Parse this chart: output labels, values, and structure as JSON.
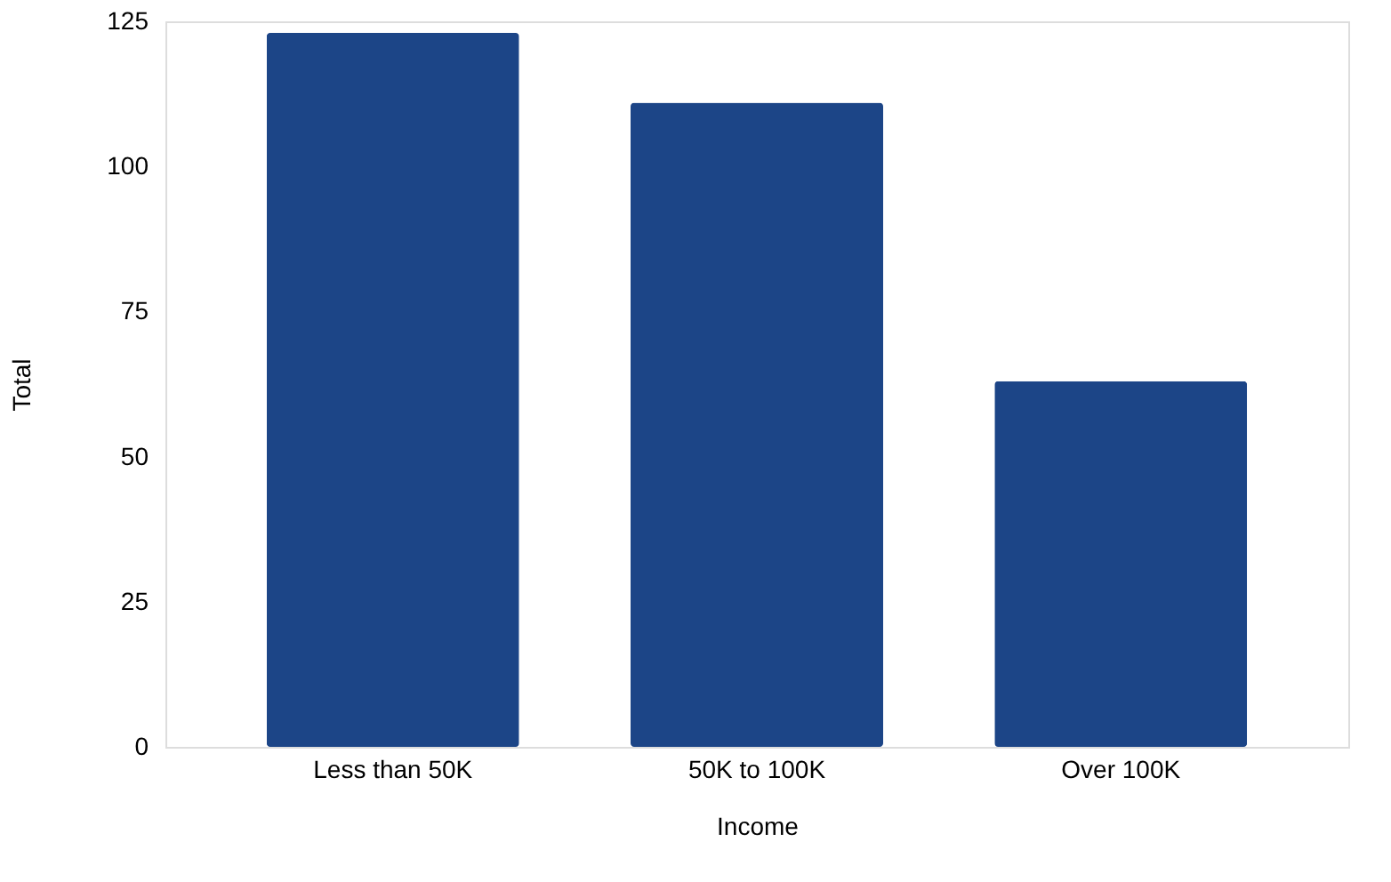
{
  "chart_data": {
    "type": "bar",
    "xlabel": "Income",
    "ylabel": "Total",
    "categories": [
      "Less than 50K",
      "50K to 100K",
      "Over 100K"
    ],
    "values": [
      123,
      111,
      63
    ],
    "color": "#1c4587",
    "ylim": [
      0,
      125
    ],
    "yticks": [
      0,
      25,
      50,
      75,
      100,
      125
    ],
    "grid": false
  }
}
